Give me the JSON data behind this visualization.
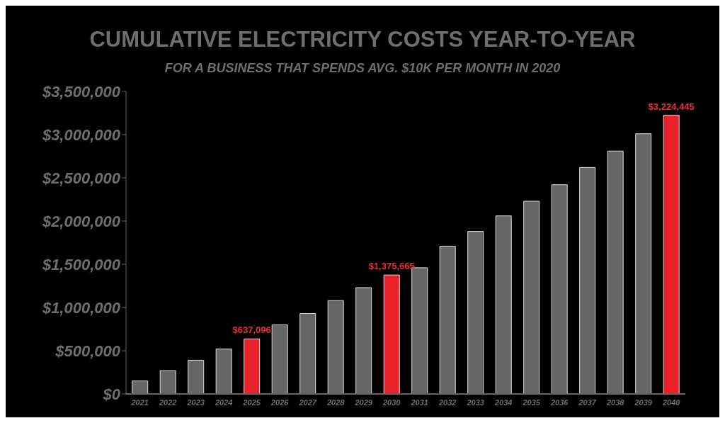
{
  "chart_data": {
    "type": "bar",
    "title": "CUMULATIVE ELECTRICITY COSTS YEAR-TO-YEAR",
    "subtitle": "FOR A BUSINESS THAT SPENDS AVG. $10K PER MONTH IN 2020",
    "categories": [
      "2021",
      "2022",
      "2023",
      "2024",
      "2025",
      "2026",
      "2027",
      "2028",
      "2029",
      "2030",
      "2031",
      "2032",
      "2033",
      "2034",
      "2035",
      "2036",
      "2037",
      "2038",
      "2039",
      "2040"
    ],
    "values": [
      150000,
      270000,
      390000,
      520000,
      637096,
      800000,
      930000,
      1080000,
      1230000,
      1375665,
      1460000,
      1710000,
      1880000,
      2060000,
      2230000,
      2420000,
      2620000,
      2810000,
      3010000,
      3224445
    ],
    "colors": [
      "#666666",
      "#666666",
      "#666666",
      "#666666",
      "#e8212a",
      "#666666",
      "#666666",
      "#666666",
      "#666666",
      "#e8212a",
      "#666666",
      "#666666",
      "#666666",
      "#666666",
      "#666666",
      "#666666",
      "#666666",
      "#666666",
      "#666666",
      "#e8212a"
    ],
    "value_labels": [
      null,
      null,
      null,
      null,
      "$637,096",
      null,
      null,
      null,
      null,
      "$1,375,665",
      null,
      null,
      null,
      null,
      null,
      null,
      null,
      null,
      null,
      "$3,224,445"
    ],
    "ylim": [
      0,
      3500000
    ],
    "yticks": [
      {
        "value": 0,
        "label": "$0"
      },
      {
        "value": 500000,
        "label": "$500,000"
      },
      {
        "value": 1000000,
        "label": "$1,000,000"
      },
      {
        "value": 1500000,
        "label": "$1,500,000"
      },
      {
        "value": 2000000,
        "label": "$2,000,000"
      },
      {
        "value": 2500000,
        "label": "$2,500,000"
      },
      {
        "value": 3000000,
        "label": "$3,000,000"
      },
      {
        "value": 3500000,
        "label": "$3,500,000"
      }
    ],
    "grid": false
  }
}
